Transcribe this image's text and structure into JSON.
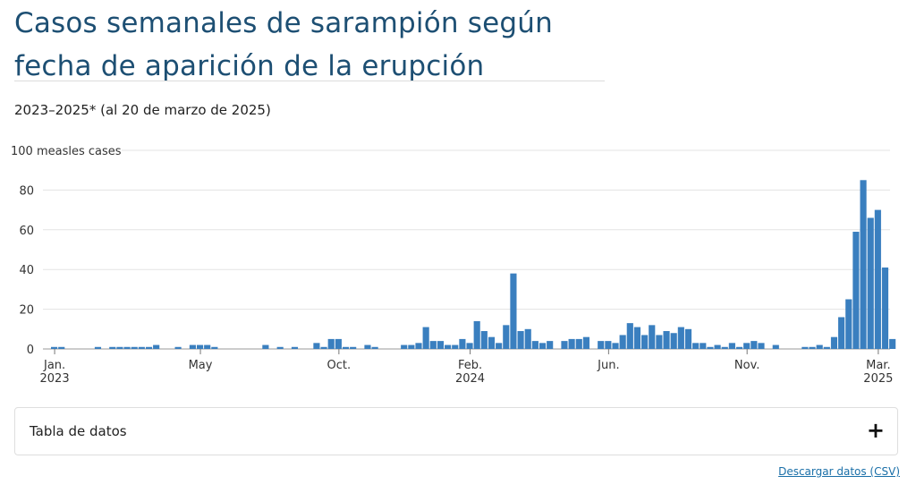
{
  "title": "Casos semanales de sarampión según fecha de aparición de la erupción",
  "subtitle": "2023–2025* (al 20 de marzo de 2025)",
  "data_table": {
    "label": "Tabla de datos",
    "toggle_icon": "plus-icon",
    "toggle_glyph": "+"
  },
  "download_link": "Descargar datos (CSV)",
  "colors": {
    "bar": "#3a7fbf",
    "title": "#1d4f73",
    "grid": "#e3e3e3",
    "link": "#1a6fa8"
  },
  "chart_data": {
    "type": "bar",
    "title": "Casos semanales de sarampión según fecha de aparición de la erupción",
    "ylabel": "measles cases",
    "xlabel": "",
    "ylim": [
      0,
      100
    ],
    "yticks": [
      0,
      20,
      40,
      60,
      80,
      100
    ],
    "ytick_labels": [
      "0",
      "20",
      "40",
      "60",
      "80",
      "100 measles cases"
    ],
    "grid": true,
    "legend": "none",
    "x_ticks": [
      {
        "week": 0,
        "line1": "Jan.",
        "line2": "2023"
      },
      {
        "week": 20,
        "line1": "May",
        "line2": ""
      },
      {
        "week": 39,
        "line1": "Oct.",
        "line2": ""
      },
      {
        "week": 57,
        "line1": "Feb.",
        "line2": "2024"
      },
      {
        "week": 76,
        "line1": "Jun.",
        "line2": ""
      },
      {
        "week": 95,
        "line1": "Nov.",
        "line2": ""
      },
      {
        "week": 113,
        "line1": "Mar.",
        "line2": "2025"
      }
    ],
    "x_range_weeks": [
      0,
      113
    ],
    "values": [
      1,
      1,
      0,
      0,
      0,
      0,
      1,
      0,
      1,
      1,
      1,
      1,
      1,
      1,
      2,
      0,
      0,
      1,
      0,
      2,
      2,
      2,
      1,
      0,
      0,
      0,
      0,
      0,
      0,
      2,
      0,
      1,
      0,
      1,
      0,
      0,
      3,
      1,
      5,
      5,
      1,
      1,
      0,
      2,
      1,
      0,
      0,
      0,
      2,
      2,
      3,
      11,
      4,
      4,
      2,
      2,
      5,
      3,
      14,
      9,
      6,
      3,
      12,
      38,
      9,
      10,
      4,
      3,
      4,
      0,
      4,
      5,
      5,
      6,
      0,
      4,
      4,
      3,
      7,
      13,
      11,
      7,
      12,
      7,
      9,
      8,
      11,
      10,
      3,
      3,
      1,
      2,
      1,
      3,
      1,
      3,
      4,
      3,
      0,
      2,
      0,
      0,
      0,
      1,
      1,
      2,
      1,
      6,
      16,
      25,
      59,
      85,
      66,
      70,
      41,
      5
    ]
  }
}
